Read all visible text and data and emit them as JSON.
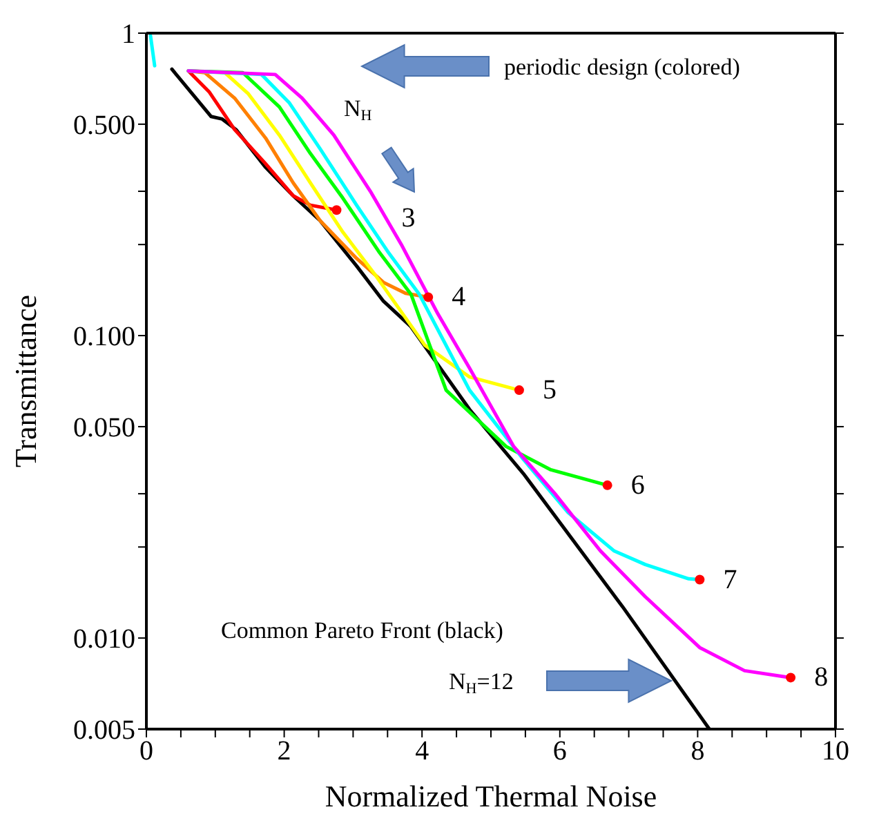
{
  "chart_data": {
    "type": "line",
    "xlabel": "Normalized Thermal Noise",
    "ylabel": "Transmittance",
    "log": "y",
    "xlim": [
      0,
      10
    ],
    "ylim": [
      0.005,
      1
    ],
    "xticks": [
      0,
      {
        "value": 0.5,
        "label": null
      },
      {
        "value": 1,
        "label": null
      },
      {
        "value": 1.5,
        "label": null
      },
      2,
      {
        "value": 2.5,
        "label": null
      },
      {
        "value": 3,
        "label": null
      },
      {
        "value": 3.5,
        "label": null
      },
      4,
      {
        "value": 4.5,
        "label": null
      },
      {
        "value": 5,
        "label": null
      },
      {
        "value": 5.5,
        "label": null
      },
      6,
      {
        "value": 6.5,
        "label": null
      },
      {
        "value": 7,
        "label": null
      },
      {
        "value": 7.5,
        "label": null
      },
      8,
      {
        "value": 8.5,
        "label": null
      },
      {
        "value": 9,
        "label": null
      },
      {
        "value": 9.5,
        "label": null
      },
      10
    ],
    "yticks": [
      {
        "value": 0.005,
        "label": "0.005"
      },
      {
        "value": 0.01,
        "label": "0.010"
      },
      {
        "value": 0.02,
        "label": null
      },
      {
        "value": 0.03,
        "label": null
      },
      {
        "value": 0.05,
        "label": "0.050"
      },
      {
        "value": 0.1,
        "label": "0.100"
      },
      {
        "value": 0.2,
        "label": null
      },
      {
        "value": 0.3,
        "label": null
      },
      {
        "value": 0.5,
        "label": "0.500"
      },
      1
    ],
    "series": [
      {
        "color": "#000000",
        "x": [
          0.37,
          0.94,
          1.1,
          1.3,
          1.73,
          2.13,
          2.52,
          3.05,
          3.44,
          3.84,
          4.69,
          5.47,
          6.91,
          8.17
        ],
        "values": [
          0.76,
          0.53,
          0.52,
          0.48,
          0.36,
          0.29,
          0.24,
          0.17,
          0.13,
          0.107,
          0.057,
          0.035,
          0.0127,
          0.005
        ]
      },
      {
        "color": "#ff0000",
        "x": [
          0.61,
          0.91,
          1.28,
          1.73,
          2.13,
          2.38,
          2.76
        ],
        "values": [
          0.75,
          0.64,
          0.48,
          0.37,
          0.29,
          0.27,
          0.26
        ]
      },
      {
        "color": "#ff8000",
        "x": [
          0.61,
          0.85,
          1.28,
          1.73,
          2.13,
          2.52,
          3.05,
          3.44,
          3.76,
          4.09
        ],
        "values": [
          0.75,
          0.74,
          0.61,
          0.45,
          0.32,
          0.24,
          0.18,
          0.15,
          0.138,
          0.134
        ]
      },
      {
        "color": "#ffff00",
        "x": [
          0.61,
          1.14,
          1.48,
          1.93,
          2.38,
          2.85,
          3.31,
          4.04,
          4.69,
          5.41
        ],
        "values": [
          0.75,
          0.74,
          0.63,
          0.46,
          0.32,
          0.22,
          0.16,
          0.093,
          0.073,
          0.066
        ]
      },
      {
        "color": "#00ff00",
        "x": [
          0.61,
          1.4,
          1.93,
          2.38,
          2.85,
          3.37,
          3.84,
          4.35,
          5.22,
          5.87,
          6.69
        ],
        "values": [
          0.75,
          0.74,
          0.57,
          0.4,
          0.285,
          0.19,
          0.137,
          0.066,
          0.043,
          0.036,
          0.032
        ]
      },
      {
        "color": "#00ffff",
        "x": [
          0.06,
          0.12,
          null,
          0.61,
          1.67,
          2.07,
          2.52,
          3.05,
          3.5,
          3.96,
          4.69,
          5.47,
          6.12,
          6.79,
          7.24,
          7.87,
          8.03
        ],
        "values": [
          0.98,
          0.78,
          null,
          0.75,
          0.73,
          0.59,
          0.415,
          0.27,
          0.19,
          0.137,
          0.066,
          0.039,
          0.026,
          0.0194,
          0.0175,
          0.0157,
          0.0156
        ]
      },
      {
        "color": "#ff00ff",
        "x": [
          0.61,
          1.87,
          2.26,
          2.72,
          3.25,
          3.7,
          4.23,
          4.69,
          5.33,
          5.93,
          6.59,
          7.24,
          8.03,
          8.68,
          9.35
        ],
        "values": [
          0.75,
          0.73,
          0.61,
          0.46,
          0.3,
          0.2,
          0.118,
          0.078,
          0.043,
          0.03,
          0.0194,
          0.0137,
          0.0093,
          0.0078,
          0.0074
        ]
      },
      {
        "type": "scatter",
        "color": "#ff0000",
        "x": [
          2.76,
          4.09,
          5.41,
          6.69,
          8.03,
          9.35
        ],
        "values": [
          0.26,
          0.134,
          0.066,
          0.032,
          0.0156,
          0.0074
        ]
      }
    ],
    "annotations": [
      {
        "text": "3",
        "x": 2.76,
        "y": 0.26
      },
      {
        "text": "4",
        "x": 4.09,
        "y": 0.134
      },
      {
        "text": "5",
        "x": 5.41,
        "y": 0.066
      },
      {
        "text": "6",
        "x": 6.69,
        "y": 0.032
      },
      {
        "text": "7",
        "x": 8.03,
        "y": 0.0156
      },
      {
        "text": "8",
        "x": 9.35,
        "y": 0.0074
      },
      "periodic design (colored)",
      "N$_{H}$",
      "Common Pareto Front (black)",
      "N$_{H}$=12"
    ]
  }
}
